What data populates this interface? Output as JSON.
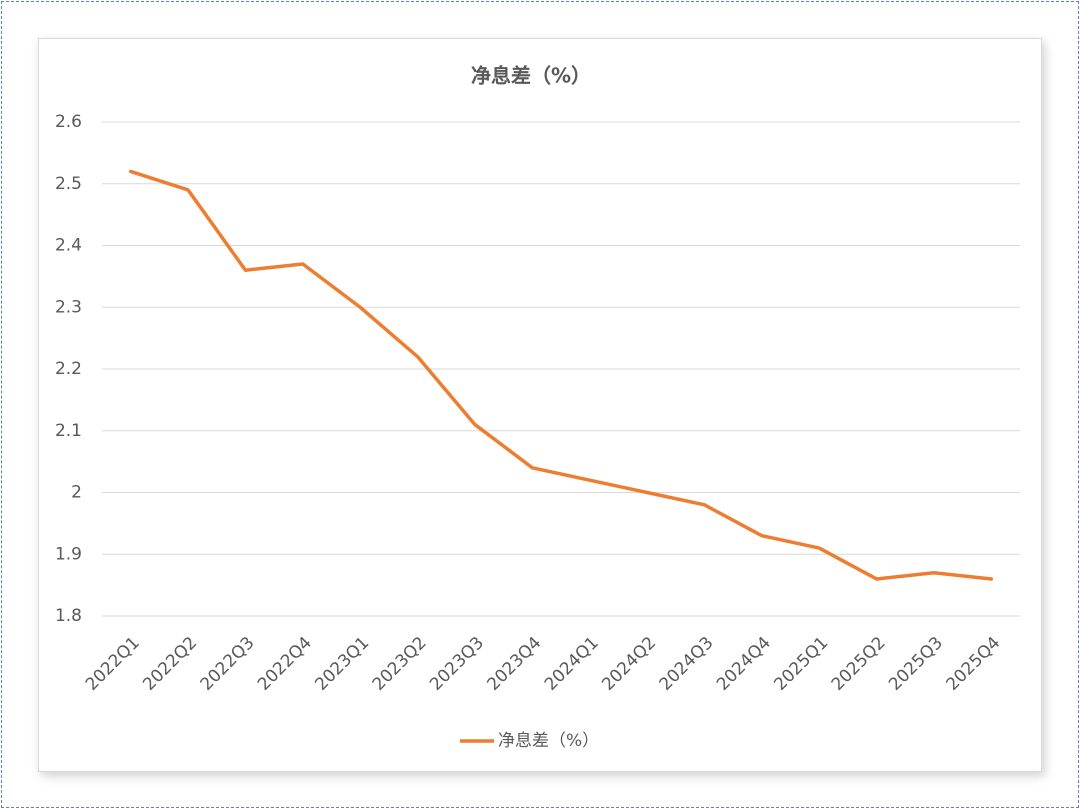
{
  "chart_data": {
    "type": "line",
    "title": "净息差（%）",
    "categories": [
      "2022Q1",
      "2022Q2",
      "2022Q3",
      "2022Q4",
      "2023Q1",
      "2023Q2",
      "2023Q3",
      "2023Q4",
      "2024Q1",
      "2024Q2",
      "2024Q3",
      "2024Q4",
      "2025Q1",
      "2025Q2",
      "2025Q3",
      "2025Q4"
    ],
    "series": [
      {
        "name": "净息差（%）",
        "color": "#ed7d31",
        "values": [
          2.52,
          2.49,
          2.36,
          2.37,
          2.3,
          2.22,
          2.11,
          2.04,
          2.02,
          2.0,
          1.98,
          1.93,
          1.91,
          1.86,
          1.87,
          1.86
        ]
      }
    ],
    "ylim": [
      1.8,
      2.6
    ],
    "yticks": [
      1.8,
      1.9,
      2.0,
      2.1,
      2.2,
      2.3,
      2.4,
      2.5,
      2.6
    ],
    "grid": true,
    "legend": "bottom"
  }
}
